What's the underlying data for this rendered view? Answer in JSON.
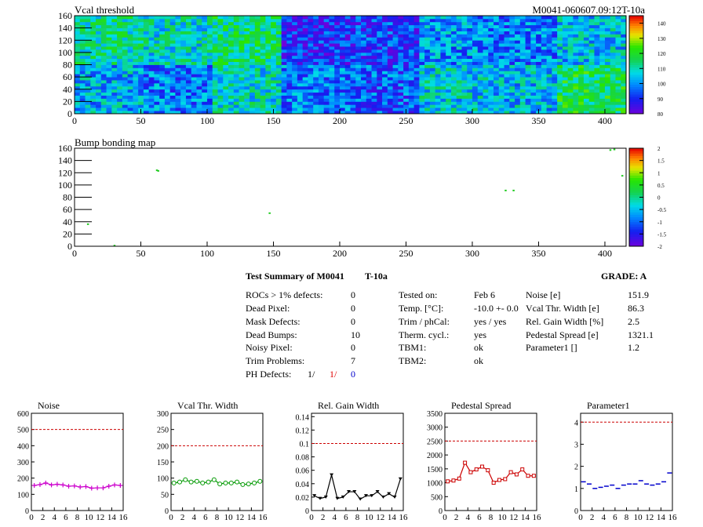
{
  "header": {
    "map_title": "Vcal threshold",
    "module_id": "M0041-060607.09:12T-10a",
    "bump_title": "Bump bonding map"
  },
  "summary": {
    "title": "Test Summary of M0041",
    "title_suffix": "T-10a",
    "grade": "GRADE:  A",
    "left": [
      {
        "label": "ROCs > 1% defects:",
        "value": "0"
      },
      {
        "label": "Dead Pixel:",
        "value": "0"
      },
      {
        "label": "Mask Defects:",
        "value": "0"
      },
      {
        "label": "Dead Bumps:",
        "value": "10"
      },
      {
        "label": "Noisy Pixel:",
        "value": "0"
      },
      {
        "label": "Trim Problems:",
        "value": "7"
      }
    ],
    "ph_defects_label": "PH Defects:",
    "ph_defects_values": [
      "1/",
      "1/",
      "0"
    ],
    "ph_defects_colors": [
      "#000000",
      "#e00000",
      "#0000cc"
    ],
    "middle": [
      {
        "label": "Tested on:",
        "value": "Feb 6"
      },
      {
        "label": "Temp. [°C]:",
        "value": "-10.0 +- 0.0"
      },
      {
        "label": "Trim / phCal:",
        "value": "yes / yes"
      },
      {
        "label": "Therm. cycl.:",
        "value": "yes"
      },
      {
        "label": "TBM1:",
        "value": "ok"
      },
      {
        "label": "TBM2:",
        "value": "ok"
      }
    ],
    "right": [
      {
        "label": "Noise [e]",
        "value": "151.9"
      },
      {
        "label": "Vcal Thr. Width [e]",
        "value": "86.3"
      },
      {
        "label": "Rel. Gain Width [%]",
        "value": "2.5"
      },
      {
        "label": "Pedestal Spread [e]",
        "value": "1321.1"
      },
      {
        "label": "Parameter1 []",
        "value": "1.2"
      }
    ]
  },
  "chart_data": [
    {
      "type": "heatmap",
      "title": "Vcal threshold",
      "xlim": [
        0,
        416
      ],
      "ylim": [
        0,
        160
      ],
      "xticks": [
        0,
        50,
        100,
        150,
        200,
        250,
        300,
        350,
        400
      ],
      "yticks": [
        0,
        20,
        40,
        60,
        80,
        100,
        120,
        140,
        160
      ],
      "zlim": [
        80,
        145
      ],
      "zticks": [
        80,
        90,
        100,
        110,
        120,
        130,
        140
      ],
      "roc_means_top": [
        112,
        108,
        114,
        90,
        92,
        100,
        98,
        104
      ],
      "roc_means_bottom": [
        103,
        98,
        108,
        98,
        95,
        106,
        104,
        116
      ],
      "colormap": "rainbow"
    },
    {
      "type": "heatmap",
      "title": "Bump bonding map",
      "xlim": [
        0,
        416
      ],
      "ylim": [
        0,
        160
      ],
      "xticks": [
        0,
        50,
        100,
        150,
        200,
        250,
        300,
        350,
        400
      ],
      "yticks": [
        0,
        20,
        40,
        60,
        80,
        100,
        120,
        140,
        160
      ],
      "zlim": [
        -2,
        2
      ],
      "zticks": [
        -2,
        -1.5,
        -1,
        -0.5,
        0,
        0.5,
        1,
        1.5,
        2
      ],
      "points": [
        [
          62,
          124
        ],
        [
          63,
          123
        ],
        [
          147,
          54
        ],
        [
          10,
          36
        ],
        [
          325,
          91
        ],
        [
          331,
          91
        ],
        [
          404,
          157
        ],
        [
          413,
          115
        ],
        [
          30,
          1
        ],
        [
          407,
          158
        ]
      ],
      "colormap": "rainbow"
    },
    {
      "type": "line",
      "title": "Noise",
      "x": [
        0,
        1,
        2,
        3,
        4,
        5,
        6,
        7,
        8,
        9,
        10,
        11,
        12,
        13,
        14,
        15
      ],
      "values": [
        155,
        160,
        170,
        158,
        162,
        158,
        150,
        152,
        145,
        148,
        138,
        140,
        140,
        150,
        158,
        155
      ],
      "threshold": 500,
      "ylim": [
        0,
        600
      ],
      "yticks": [
        0,
        100,
        200,
        300,
        400,
        500,
        600
      ],
      "xticks": [
        0,
        2,
        4,
        6,
        8,
        10,
        12,
        14,
        16
      ],
      "color": "#cc00cc",
      "marker": "plus"
    },
    {
      "type": "line",
      "title": "Vcal Thr. Width",
      "x": [
        0,
        1,
        2,
        3,
        4,
        5,
        6,
        7,
        8,
        9,
        10,
        11,
        12,
        13,
        14,
        15
      ],
      "values": [
        85,
        88,
        95,
        88,
        90,
        85,
        88,
        95,
        82,
        85,
        85,
        88,
        80,
        82,
        85,
        90
      ],
      "threshold": 200,
      "ylim": [
        0,
        300
      ],
      "yticks": [
        0,
        50,
        100,
        150,
        200,
        250,
        300
      ],
      "xticks": [
        0,
        2,
        4,
        6,
        8,
        10,
        12,
        14,
        16
      ],
      "color": "#009900",
      "marker": "circle"
    },
    {
      "type": "line",
      "title": "Rel. Gain Width",
      "x": [
        0,
        1,
        2,
        3,
        4,
        5,
        6,
        7,
        8,
        9,
        10,
        11,
        12,
        13,
        14,
        15
      ],
      "values": [
        0.022,
        0.018,
        0.02,
        0.053,
        0.018,
        0.02,
        0.028,
        0.028,
        0.017,
        0.022,
        0.022,
        0.028,
        0.02,
        0.025,
        0.02,
        0.047
      ],
      "threshold": 0.1,
      "ylim": [
        0,
        0.145
      ],
      "yticks": [
        0,
        0.02,
        0.04,
        0.06,
        0.08,
        0.1,
        0.12,
        0.14
      ],
      "xticks": [
        0,
        2,
        4,
        6,
        8,
        10,
        12,
        14,
        16
      ],
      "color": "#000000",
      "marker": "triangle"
    },
    {
      "type": "line",
      "title": "Pedestal Spread",
      "x": [
        0,
        1,
        2,
        3,
        4,
        5,
        6,
        7,
        8,
        9,
        10,
        11,
        12,
        13,
        14,
        15
      ],
      "values": [
        1050,
        1080,
        1150,
        1720,
        1380,
        1480,
        1580,
        1450,
        1000,
        1100,
        1130,
        1380,
        1300,
        1480,
        1250,
        1250
      ],
      "threshold": 2500,
      "ylim": [
        0,
        3500
      ],
      "yticks": [
        0,
        500,
        1000,
        1500,
        2000,
        2500,
        3000,
        3500
      ],
      "xticks": [
        0,
        2,
        4,
        6,
        8,
        10,
        12,
        14,
        16
      ],
      "color": "#cc0000",
      "marker": "square"
    },
    {
      "type": "line",
      "title": "Parameter1",
      "x": [
        0,
        1,
        2,
        3,
        4,
        5,
        6,
        7,
        8,
        9,
        10,
        11,
        12,
        13,
        14,
        15
      ],
      "values": [
        1.3,
        1.2,
        1.0,
        1.05,
        1.1,
        1.15,
        1.0,
        1.15,
        1.2,
        1.2,
        1.35,
        1.2,
        1.15,
        1.2,
        1.3,
        1.7
      ],
      "threshold": 4,
      "ylim": [
        0,
        4.4
      ],
      "yticks": [
        0,
        1,
        2,
        3,
        4
      ],
      "xticks": [
        0,
        2,
        4,
        6,
        8,
        10,
        12,
        14,
        16
      ],
      "color": "#0000cc",
      "marker": "dash",
      "connect": false
    }
  ]
}
